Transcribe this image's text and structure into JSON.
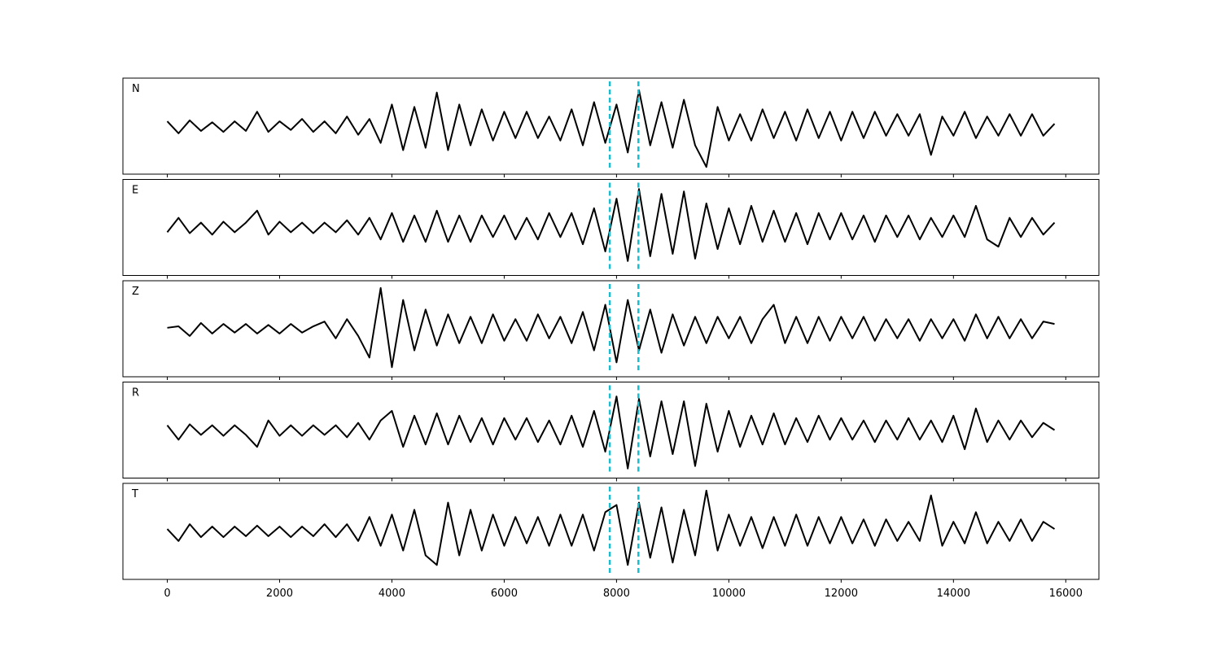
{
  "chart_data": {
    "type": "line",
    "x": [
      0,
      200,
      400,
      600,
      800,
      1000,
      1200,
      1400,
      1600,
      1800,
      2000,
      2200,
      2400,
      2600,
      2800,
      3000,
      3200,
      3400,
      3600,
      3800,
      4000,
      4200,
      4400,
      4600,
      4800,
      5000,
      5200,
      5400,
      5600,
      5800,
      6000,
      6200,
      6400,
      6600,
      6800,
      7000,
      7200,
      7400,
      7600,
      7800,
      8000,
      8200,
      8400,
      8600,
      8800,
      9000,
      9200,
      9400,
      9600,
      9800,
      10000,
      10200,
      10400,
      10600,
      10800,
      11000,
      11200,
      11400,
      11600,
      11800,
      12000,
      12200,
      12400,
      12600,
      12800,
      13000,
      13200,
      13400,
      13600,
      13800,
      14000,
      14200,
      14400,
      14600,
      14800,
      15000,
      15200,
      15400,
      15600,
      15800
    ],
    "xlim": [
      -790,
      16590
    ],
    "xticks": [
      0,
      2000,
      4000,
      6000,
      8000,
      10000,
      12000,
      14000,
      16000
    ],
    "ylim": [
      -1,
      1
    ],
    "color": "#000000",
    "vlines": [
      7880,
      8390
    ],
    "vline_color": "#17becf",
    "series": [
      {
        "name": "N",
        "values": [
          0.1,
          -0.15,
          0.12,
          -0.1,
          0.08,
          -0.12,
          0.1,
          -0.1,
          0.3,
          -0.12,
          0.1,
          -0.08,
          0.15,
          -0.12,
          0.1,
          -0.15,
          0.2,
          -0.18,
          0.15,
          -0.35,
          0.45,
          -0.5,
          0.4,
          -0.45,
          0.7,
          -0.5,
          0.45,
          -0.4,
          0.35,
          -0.3,
          0.3,
          -0.25,
          0.3,
          -0.25,
          0.2,
          -0.3,
          0.35,
          -0.4,
          0.5,
          -0.35,
          0.45,
          -0.55,
          0.75,
          -0.4,
          0.5,
          -0.45,
          0.55,
          -0.4,
          -0.85,
          0.4,
          -0.3,
          0.25,
          -0.3,
          0.35,
          -0.25,
          0.3,
          -0.3,
          0.35,
          -0.25,
          0.3,
          -0.3,
          0.3,
          -0.25,
          0.3,
          -0.2,
          0.25,
          -0.2,
          0.25,
          -0.6,
          0.2,
          -0.2,
          0.3,
          -0.25,
          0.2,
          -0.2,
          0.25,
          -0.2,
          0.25,
          -0.2,
          0.05
        ]
      },
      {
        "name": "E",
        "values": [
          -0.1,
          0.2,
          -0.12,
          0.1,
          -0.15,
          0.12,
          -0.1,
          0.1,
          0.35,
          -0.15,
          0.12,
          -0.1,
          0.1,
          -0.12,
          0.1,
          -0.1,
          0.15,
          -0.15,
          0.2,
          -0.25,
          0.3,
          -0.3,
          0.25,
          -0.3,
          0.35,
          -0.3,
          0.25,
          -0.3,
          0.25,
          -0.2,
          0.25,
          -0.25,
          0.2,
          -0.25,
          0.3,
          -0.2,
          0.3,
          -0.35,
          0.4,
          -0.5,
          0.6,
          -0.7,
          0.8,
          -0.6,
          0.7,
          -0.55,
          0.75,
          -0.65,
          0.5,
          -0.45,
          0.4,
          -0.35,
          0.45,
          -0.3,
          0.35,
          -0.3,
          0.3,
          -0.35,
          0.3,
          -0.25,
          0.3,
          -0.25,
          0.25,
          -0.3,
          0.25,
          -0.2,
          0.25,
          -0.25,
          0.2,
          -0.2,
          0.25,
          -0.2,
          0.45,
          -0.25,
          -0.4,
          0.2,
          -0.2,
          0.2,
          -0.15,
          0.1
        ]
      },
      {
        "name": "Z",
        "values": [
          0.02,
          0.05,
          -0.15,
          0.12,
          -0.1,
          0.1,
          -0.08,
          0.1,
          -0.1,
          0.08,
          -0.1,
          0.1,
          -0.08,
          0.05,
          0.15,
          -0.2,
          0.2,
          -0.15,
          -0.6,
          0.85,
          -0.8,
          0.6,
          -0.45,
          0.4,
          -0.35,
          0.3,
          -0.3,
          0.25,
          -0.3,
          0.3,
          -0.25,
          0.2,
          -0.25,
          0.3,
          -0.2,
          0.25,
          -0.3,
          0.35,
          -0.45,
          0.5,
          -0.7,
          0.6,
          -0.45,
          0.4,
          -0.5,
          0.3,
          -0.35,
          0.25,
          -0.3,
          0.25,
          -0.2,
          0.25,
          -0.3,
          0.2,
          0.5,
          -0.3,
          0.25,
          -0.3,
          0.25,
          -0.25,
          0.25,
          -0.2,
          0.25,
          -0.25,
          0.2,
          -0.2,
          0.2,
          -0.25,
          0.2,
          -0.2,
          0.2,
          -0.25,
          0.3,
          -0.2,
          0.25,
          -0.2,
          0.2,
          -0.2,
          0.15,
          0.1
        ]
      },
      {
        "name": "R",
        "values": [
          0.1,
          -0.2,
          0.12,
          -0.1,
          0.1,
          -0.12,
          0.1,
          -0.1,
          -0.35,
          0.2,
          -0.12,
          0.1,
          -0.12,
          0.1,
          -0.1,
          0.1,
          -0.15,
          0.15,
          -0.2,
          0.2,
          0.4,
          -0.35,
          0.3,
          -0.3,
          0.35,
          -0.3,
          0.3,
          -0.25,
          0.25,
          -0.3,
          0.25,
          -0.2,
          0.25,
          -0.25,
          0.2,
          -0.3,
          0.3,
          -0.35,
          0.4,
          -0.45,
          0.7,
          -0.8,
          0.65,
          -0.55,
          0.6,
          -0.5,
          0.6,
          -0.75,
          0.55,
          -0.45,
          0.4,
          -0.35,
          0.3,
          -0.3,
          0.35,
          -0.3,
          0.25,
          -0.25,
          0.3,
          -0.2,
          0.25,
          -0.2,
          0.2,
          -0.25,
          0.2,
          -0.2,
          0.25,
          -0.2,
          0.2,
          -0.25,
          0.3,
          -0.4,
          0.45,
          -0.25,
          0.2,
          -0.2,
          0.2,
          -0.15,
          0.15,
          0.0
        ]
      },
      {
        "name": "T",
        "values": [
          0.05,
          -0.2,
          0.15,
          -0.12,
          0.1,
          -0.12,
          0.1,
          -0.1,
          0.12,
          -0.1,
          0.1,
          -0.12,
          0.1,
          -0.1,
          0.15,
          -0.12,
          0.15,
          -0.2,
          0.3,
          -0.3,
          0.35,
          -0.4,
          0.45,
          -0.5,
          -0.7,
          0.6,
          -0.5,
          0.45,
          -0.4,
          0.35,
          -0.3,
          0.3,
          -0.25,
          0.3,
          -0.3,
          0.35,
          -0.3,
          0.35,
          -0.4,
          0.4,
          0.55,
          -0.7,
          0.6,
          -0.55,
          0.5,
          -0.65,
          0.45,
          -0.5,
          0.85,
          -0.4,
          0.35,
          -0.3,
          0.3,
          -0.35,
          0.3,
          -0.3,
          0.35,
          -0.3,
          0.3,
          -0.25,
          0.3,
          -0.25,
          0.25,
          -0.3,
          0.25,
          -0.2,
          0.2,
          -0.2,
          0.75,
          -0.3,
          0.2,
          -0.25,
          0.4,
          -0.25,
          0.2,
          -0.2,
          0.25,
          -0.2,
          0.2,
          0.05
        ]
      }
    ]
  }
}
